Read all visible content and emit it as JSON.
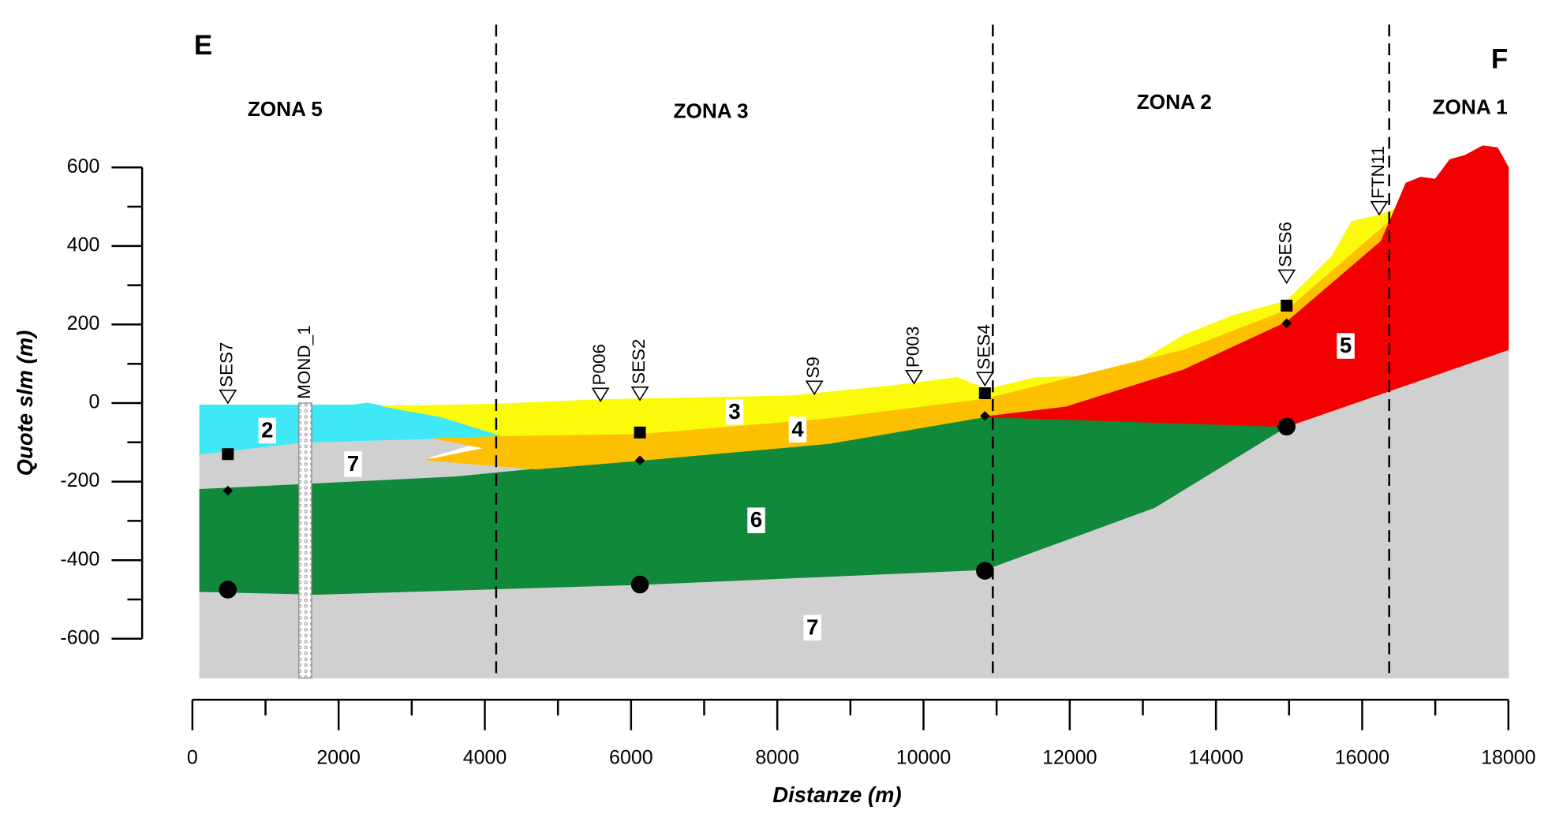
{
  "chart_data": {
    "type": "cross-section",
    "end_labels": [
      "E",
      "F"
    ],
    "zones": {
      "names": [
        "ZONA 5",
        "ZONA 3",
        "ZONA 2",
        "ZONA 1"
      ],
      "boundaries": [
        4155,
        10948,
        16370
      ]
    },
    "xlabel": "Distanze (m)",
    "ylabel": "Quote slm (m)",
    "xlim": [
      0,
      18000
    ],
    "ylim": [
      -700,
      700
    ],
    "xticks": [
      0,
      2000,
      4000,
      6000,
      8000,
      10000,
      12000,
      14000,
      16000,
      18000
    ],
    "xticks_minor": [
      1000,
      3000,
      5000,
      7000,
      9000,
      11000,
      13000,
      15000,
      17000
    ],
    "yticks": [
      -600,
      -400,
      -200,
      0,
      200,
      400,
      600
    ],
    "yticks_minor": [
      -500,
      -300,
      -100,
      100,
      300,
      500
    ],
    "layers": [
      {
        "label": "7",
        "color": "#d0d0d0",
        "x": [
          100,
          1700,
          6121,
          10840,
          13160,
          14967,
          18000,
          18000,
          100
        ],
        "y": [
          -480,
          -487,
          -462,
          -424,
          -266,
          -60,
          136,
          -700,
          -700
        ]
      },
      {
        "label": "7",
        "color": "#d0d0d0",
        "x": [
          100,
          100,
          1500,
          3400,
          4200,
          3200,
          4700,
          3600
        ],
        "y": [
          -220,
          -130,
          -100,
          -90,
          -85,
          -140,
          -168,
          -188
        ]
      },
      {
        "label": "6",
        "color": "#10893a",
        "x": [
          100,
          3600,
          4700,
          6121,
          8700,
          10840,
          14967,
          13160,
          10840,
          6121,
          1700,
          100
        ],
        "y": [
          -220,
          -188,
          -168,
          -146,
          -103,
          -35,
          -60,
          -266,
          -424,
          -462,
          -487,
          -480
        ]
      },
      {
        "label": "2",
        "color": "#3ee8f4",
        "x": [
          100,
          2200,
          2400,
          2600,
          3400,
          4260,
          3300,
          1500,
          100
        ],
        "y": [
          -5,
          -5,
          0,
          -8,
          -35,
          -85,
          -90,
          -100,
          -130
        ]
      },
      {
        "label": "3",
        "color": "#fafa0a",
        "x": [
          2600,
          4126,
          5474,
          8171,
          9520,
          10463,
          10867,
          11540,
          12215,
          12890,
          13564,
          14238,
          14967,
          15587,
          15857,
          16260,
          16530,
          16530,
          16260,
          14967,
          13564,
          10840,
          8710,
          6121,
          4260,
          3400
        ],
        "y": [
          -8,
          -3,
          8,
          18,
          43,
          65,
          35,
          65,
          68,
          98,
          173,
          223,
          260,
          374,
          462,
          480,
          500,
          487,
          444,
          236,
          135,
          10,
          -40,
          -80,
          -85,
          -35
        ]
      },
      {
        "label": "4",
        "color": "#fdc000",
        "x": [
          3200,
          4000,
          3300,
          4260,
          6121,
          8710,
          10840,
          13564,
          14967,
          16260,
          16530,
          16260,
          14967,
          13564,
          11950,
          10840,
          8710,
          6121,
          4700
        ],
        "y": [
          -145,
          -115,
          -90,
          -85,
          -80,
          -40,
          10,
          135,
          236,
          444,
          487,
          412,
          206,
          85,
          -10,
          -35,
          -103,
          -146,
          -168
        ]
      },
      {
        "label": "5",
        "color": "#f20000",
        "x": [
          10840,
          11950,
          13564,
          14967,
          16260,
          16600,
          16800,
          17000,
          17200,
          17400,
          17650,
          17850,
          18000,
          18000,
          14967
        ],
        "y": [
          -35,
          -10,
          85,
          206,
          412,
          560,
          575,
          570,
          620,
          630,
          655,
          650,
          600,
          136,
          -60
        ]
      }
    ],
    "column": {
      "name": "MOND_1",
      "x": [
        1456,
        1631
      ],
      "values": [
        0,
        -700
      ]
    },
    "wells": {
      "names": [
        "SES7",
        "P006",
        "SES2",
        "S9",
        "P003",
        "SES4",
        "SES6",
        "FTN11"
      ],
      "x": [
        485,
        5582,
        6121,
        8508,
        9870,
        10840,
        14967,
        16233
      ],
      "values": [
        0,
        5,
        8,
        23,
        50,
        45,
        306,
        480
      ]
    },
    "squares": {
      "x": [
        485,
        6121,
        10840,
        14967
      ],
      "values": [
        -130,
        -75,
        25,
        248
      ]
    },
    "diamonds": {
      "x": [
        485,
        6121,
        10840,
        14967
      ],
      "values": [
        -223,
        -146,
        -33,
        203
      ]
    },
    "circles": {
      "x": [
        485,
        6121,
        10840,
        14967
      ],
      "values": [
        -475,
        -462,
        -427,
        -60
      ]
    }
  }
}
